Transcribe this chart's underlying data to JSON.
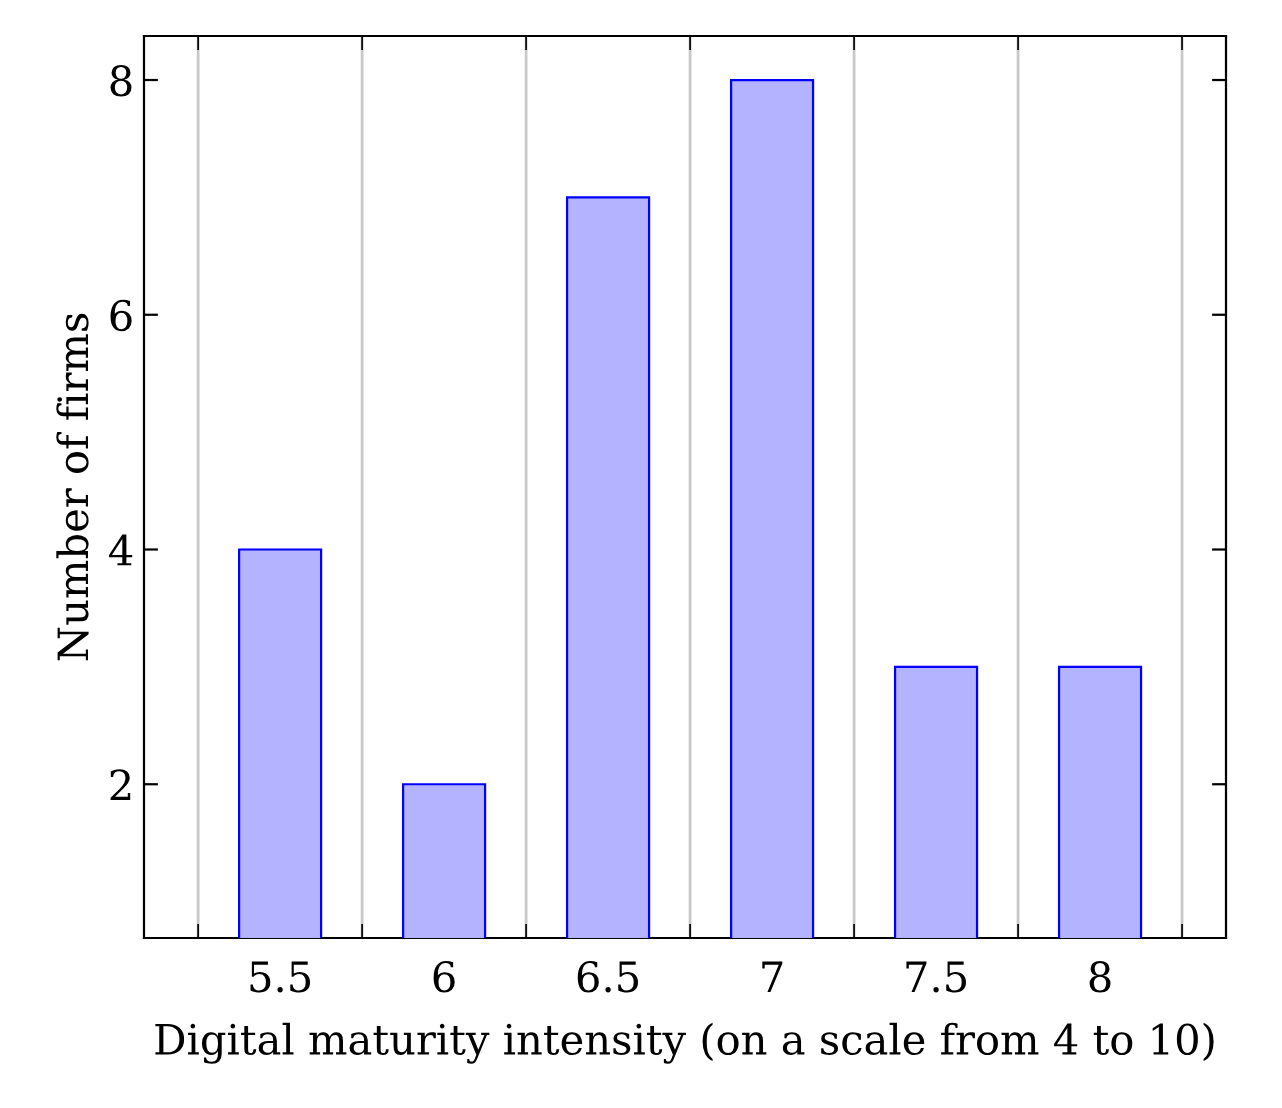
{
  "chart_data": {
    "type": "bar",
    "xlabel": "Digital maturity intensity (on a scale from 4 to 10)",
    "ylabel": "Number of firms",
    "x": [
      5.5,
      6,
      6.5,
      7,
      7.5,
      8
    ],
    "values": [
      4,
      2,
      7,
      8,
      3,
      3
    ],
    "color": "#b3b3ff",
    "xlim": [
      5.085,
      8.384
    ],
    "ylim": [
      0.69,
      8.375
    ],
    "xticks": [
      {
        "value": 5.25,
        "label": null
      },
      5.5,
      {
        "value": 5.75,
        "label": null
      },
      6,
      {
        "value": 6.25,
        "label": null
      },
      6.5,
      {
        "value": 6.75,
        "label": null
      },
      7,
      {
        "value": 7.25,
        "label": null
      },
      7.5,
      {
        "value": 7.75,
        "label": null
      },
      8,
      {
        "value": 8.25,
        "label": null
      }
    ],
    "yticks": [
      2,
      4,
      6,
      8
    ],
    "grid": "x"
  }
}
